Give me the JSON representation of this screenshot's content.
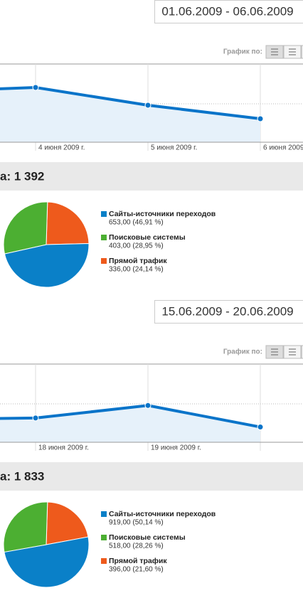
{
  "panels": [
    {
      "date_range": "01.06.2009 - 06.06.2009",
      "graph_by": "График по:",
      "total": "а: 1 392"
    },
    {
      "date_range": "15.06.2009 - 20.06.2009",
      "graph_by": "График по:",
      "total": "а: 1 833"
    }
  ],
  "chart_data": [
    {
      "type": "line",
      "categories": [
        null,
        "4 июня 2009 г.",
        "5 июня 2009 г.",
        "6 июня 2009 г."
      ],
      "values": [
        258,
        280,
        189,
        120
      ],
      "color": "#0a74c9",
      "ylim": [
        0,
        400
      ]
    },
    {
      "type": "pie",
      "categories": [
        "Сайты-источники переходов",
        "Поисковые системы",
        "Прямой трафик"
      ],
      "values": [
        653,
        403,
        336
      ],
      "value_labels": [
        "653,00 (46,91 %)",
        "403,00 (28,95 %)",
        "336,00 (24,14 %)"
      ],
      "colors": [
        "#0a80c8",
        "#4caf32",
        "#ee5a1c"
      ]
    },
    {
      "type": "line",
      "categories": [
        null,
        "18 июня 2009 г.",
        "19 июня 2009 г.",
        null
      ],
      "values": [
        117,
        124,
        188,
        78
      ],
      "color": "#0a74c9",
      "ylim": [
        0,
        400
      ]
    },
    {
      "type": "pie",
      "categories": [
        "Сайты-источники переходов",
        "Поисковые системы",
        "Прямой трафик"
      ],
      "values": [
        919,
        518,
        396
      ],
      "value_labels": [
        "919,00 (50,14 %)",
        "518,00 (28,26 %)",
        "396,00 (21,60 %)"
      ],
      "colors": [
        "#0a80c8",
        "#4caf32",
        "#ee5a1c"
      ]
    }
  ]
}
